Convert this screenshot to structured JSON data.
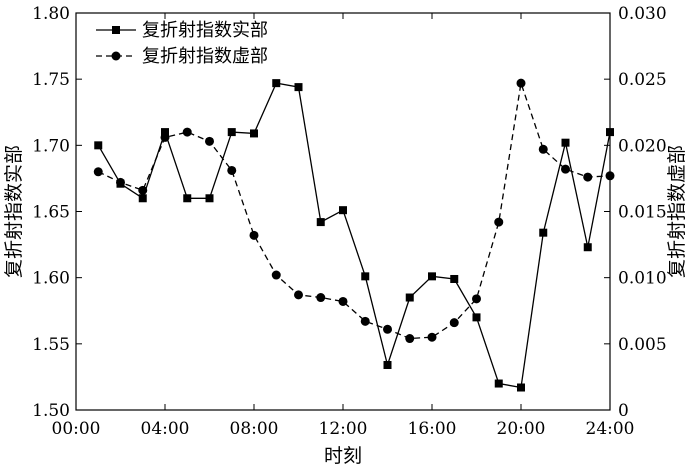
{
  "chart_data": {
    "type": "line",
    "title": "",
    "xlabel": "时刻",
    "ylabel_left": "复折射指数实部",
    "ylabel_right": "复折射指数虚部",
    "x_ticks": [
      "00:00",
      "04:00",
      "08:00",
      "12:00",
      "16:00",
      "20:00",
      "24:00"
    ],
    "x_tick_hours": [
      0,
      4,
      8,
      12,
      16,
      20,
      24
    ],
    "xlim": [
      0,
      24
    ],
    "ylim_left": [
      1.5,
      1.8
    ],
    "y_ticks_left": [
      "1.50",
      "1.55",
      "1.60",
      "1.65",
      "1.70",
      "1.75",
      "1.80"
    ],
    "ylim_right": [
      0,
      0.03
    ],
    "y_ticks_right": [
      "0",
      "0.005",
      "0.010",
      "0.015",
      "0.020",
      "0.025",
      "0.030"
    ],
    "legend_position": "top-left",
    "grid": false,
    "x": [
      1,
      2,
      3,
      4,
      5,
      6,
      7,
      8,
      9,
      10,
      11,
      12,
      13,
      14,
      15,
      16,
      17,
      18,
      19,
      20,
      21,
      22,
      23,
      24
    ],
    "series": [
      {
        "name": "复折射指数实部",
        "axis": "left",
        "marker": "square",
        "line_style": "solid",
        "values": [
          1.7,
          1.671,
          1.66,
          1.71,
          1.66,
          1.66,
          1.71,
          1.709,
          1.747,
          1.744,
          1.642,
          1.651,
          1.601,
          1.534,
          1.585,
          1.601,
          1.599,
          1.57,
          1.52,
          1.517,
          1.634,
          1.702,
          1.623,
          1.71
        ]
      },
      {
        "name": "复折射指数虚部",
        "axis": "right",
        "marker": "circle",
        "line_style": "dashed",
        "values": [
          0.018,
          0.0172,
          0.0166,
          0.0206,
          0.021,
          0.0203,
          0.0181,
          0.0132,
          0.0102,
          0.0087,
          0.0085,
          0.0082,
          0.0067,
          0.0061,
          0.0054,
          0.0055,
          0.0066,
          0.0084,
          0.0142,
          0.0247,
          0.0197,
          0.0182,
          0.0176,
          0.0177
        ]
      }
    ]
  }
}
